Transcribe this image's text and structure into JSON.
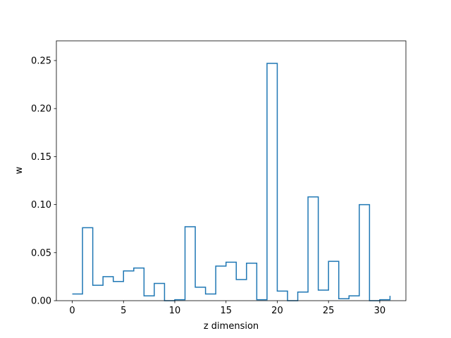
{
  "chart_data": {
    "type": "line",
    "step": "post",
    "x": [
      0,
      1,
      2,
      3,
      4,
      5,
      6,
      7,
      8,
      9,
      10,
      11,
      12,
      13,
      14,
      15,
      16,
      17,
      18,
      19,
      20,
      21,
      22,
      23,
      24,
      25,
      26,
      27,
      28,
      29,
      30,
      31
    ],
    "y": [
      0.007,
      0.076,
      0.016,
      0.025,
      0.02,
      0.031,
      0.034,
      0.005,
      0.018,
      0.0,
      0.001,
      0.077,
      0.014,
      0.007,
      0.036,
      0.04,
      0.022,
      0.039,
      0.001,
      0.247,
      0.01,
      0.0,
      0.009,
      0.108,
      0.011,
      0.041,
      0.002,
      0.005,
      0.1,
      0.0,
      0.001,
      0.005
    ],
    "xlabel": "z dimension",
    "ylabel": "w",
    "xlim": [
      -1.55,
      32.55
    ],
    "ylim": [
      0.0,
      0.2705
    ],
    "xticks": [
      0,
      5,
      10,
      15,
      20,
      25,
      30
    ],
    "xtick_labels": [
      "0",
      "5",
      "10",
      "15",
      "20",
      "25",
      "30"
    ],
    "yticks": [
      0.0,
      0.05,
      0.1,
      0.15,
      0.2,
      0.25
    ],
    "ytick_labels": [
      "0.00",
      "0.05",
      "0.10",
      "0.15",
      "0.20",
      "0.25"
    ],
    "grid": false,
    "legend": false,
    "line_color": "#1f77b4"
  }
}
